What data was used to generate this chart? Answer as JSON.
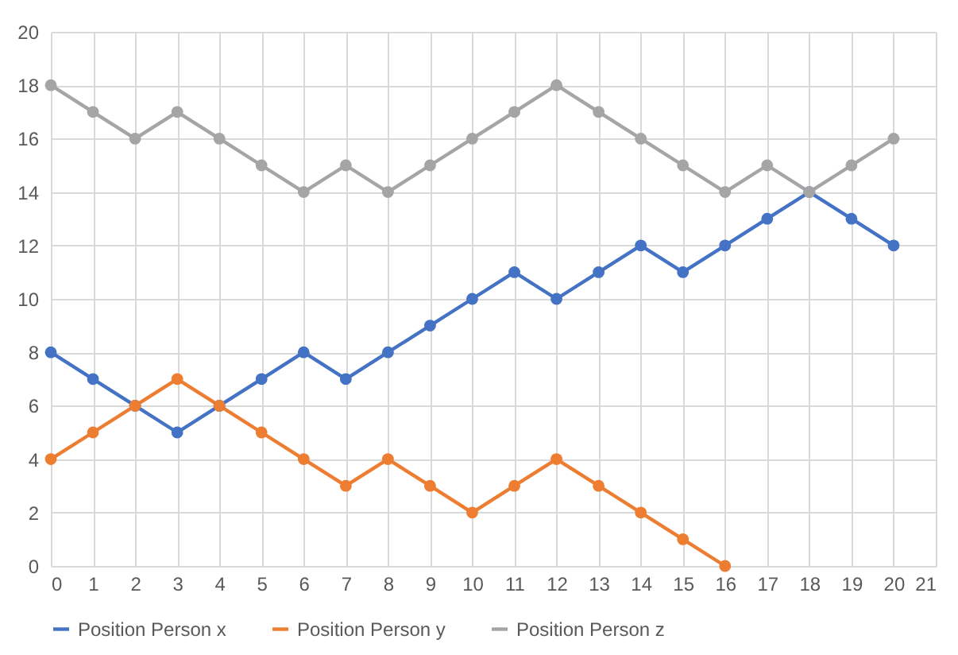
{
  "chart_data": {
    "type": "line",
    "x": [
      0,
      1,
      2,
      3,
      4,
      5,
      6,
      7,
      8,
      9,
      10,
      11,
      12,
      13,
      14,
      15,
      16,
      17,
      18,
      19,
      20
    ],
    "series": [
      {
        "name": "Position Person x",
        "color": "#4472c4",
        "values": [
          8,
          7,
          6,
          5,
          6,
          7,
          8,
          7,
          8,
          9,
          10,
          11,
          10,
          11,
          12,
          11,
          12,
          13,
          14,
          13,
          12
        ]
      },
      {
        "name": "Position Person y",
        "color": "#ed7d31",
        "values": [
          4,
          5,
          6,
          7,
          6,
          5,
          4,
          3,
          4,
          3,
          2,
          3,
          4,
          3,
          2,
          1,
          0,
          null,
          null,
          null,
          null
        ]
      },
      {
        "name": "Position Person z",
        "color": "#a5a5a5",
        "values": [
          18,
          17,
          16,
          17,
          16,
          15,
          14,
          15,
          14,
          15,
          16,
          17,
          18,
          17,
          16,
          15,
          14,
          15,
          14,
          15,
          16
        ]
      }
    ],
    "xlim": [
      0,
      21
    ],
    "xticks": [
      0,
      1,
      2,
      3,
      4,
      5,
      6,
      7,
      8,
      9,
      10,
      11,
      12,
      13,
      14,
      15,
      16,
      17,
      18,
      19,
      20,
      21
    ],
    "ylim": [
      0,
      20
    ],
    "yticks": [
      0,
      2,
      4,
      6,
      8,
      10,
      12,
      14,
      16,
      18,
      20
    ],
    "grid": true,
    "legend": "bottom",
    "marker": "circle",
    "line_style": "solid"
  }
}
